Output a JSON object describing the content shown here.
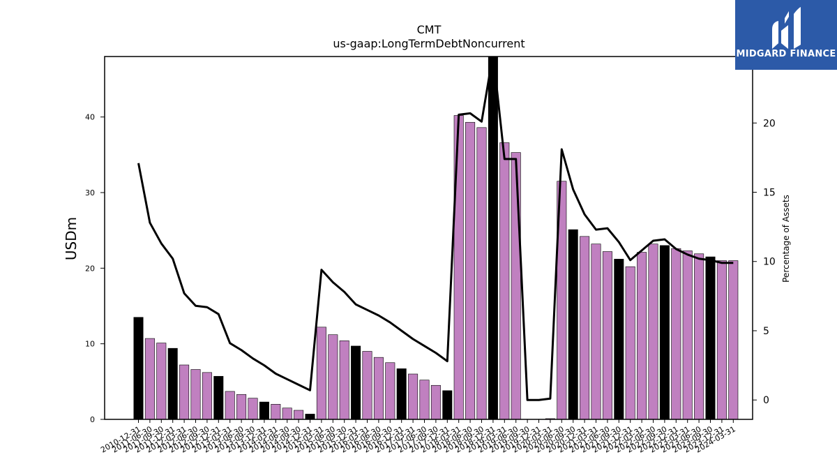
{
  "chart_data": {
    "type": "bar",
    "title": "CMT",
    "subtitle": "us-gaap:LongTermDebtNoncurrent",
    "ylabel": "USDm",
    "ylabel_right": "Percentage of Assets",
    "ylim": [
      0,
      48
    ],
    "ylim_right": [
      -1.4,
      24.8
    ],
    "yticks": [
      0,
      10,
      20,
      30,
      40
    ],
    "yticks_right": [
      0,
      5,
      10,
      15,
      20
    ],
    "categories": [
      "2010-12-31",
      "2011-06-30",
      "2011-09-30",
      "2011-12-31",
      "2012-03-31",
      "2012-06-30",
      "2012-09-30",
      "2012-12-31",
      "2013-03-31",
      "2013-06-30",
      "2013-09-30",
      "2013-12-31",
      "2014-03-31",
      "2014-06-30",
      "2014-09-30",
      "2014-12-31",
      "2015-03-31",
      "2015-06-30",
      "2015-09-30",
      "2015-12-31",
      "2016-03-31",
      "2016-06-30",
      "2016-09-30",
      "2016-12-31",
      "2017-03-31",
      "2017-06-30",
      "2017-09-30",
      "2017-12-31",
      "2018-03-31",
      "2018-06-30",
      "2018-09-30",
      "2018-12-31",
      "2019-03-31",
      "2019-06-30",
      "2019-09-30",
      "2019-12-31",
      "2020-03-31",
      "2020-06-30",
      "2020-09-30",
      "2020-12-31",
      "2021-03-31",
      "2021-06-30",
      "2021-09-30",
      "2021-12-31",
      "2022-03-31",
      "2022-06-30",
      "2022-09-30",
      "2022-12-31",
      "2023-03-31",
      "2023-06-30",
      "2023-09-30",
      "2023-12-31",
      "2024-03-31"
    ],
    "values": [
      13.5,
      10.7,
      10.1,
      9.4,
      7.2,
      6.6,
      6.2,
      5.7,
      3.7,
      3.3,
      2.8,
      2.3,
      2.0,
      1.5,
      1.2,
      0.7,
      12.2,
      11.2,
      10.4,
      9.7,
      9.0,
      8.2,
      7.5,
      6.7,
      6.0,
      5.2,
      4.5,
      3.8,
      40.2,
      39.3,
      38.6,
      48.6,
      36.6,
      35.3,
      0.0,
      0.0,
      0.1,
      31.5,
      25.1,
      24.2,
      23.2,
      22.2,
      21.2,
      20.2,
      22.1,
      23.2,
      23.0,
      22.6,
      22.3,
      21.9,
      21.5,
      21.0,
      21.0
    ],
    "highlight": [
      true,
      false,
      false,
      true,
      false,
      false,
      false,
      true,
      false,
      false,
      false,
      true,
      false,
      false,
      false,
      true,
      false,
      false,
      false,
      true,
      false,
      false,
      false,
      true,
      false,
      false,
      false,
      true,
      false,
      false,
      false,
      true,
      false,
      false,
      false,
      true,
      false,
      false,
      true,
      false,
      false,
      false,
      true,
      false,
      false,
      false,
      true,
      false,
      false,
      false,
      true,
      false,
      false
    ],
    "line_series": {
      "name": "Percentage of Assets",
      "values": [
        17.1,
        12.8,
        11.3,
        10.2,
        7.7,
        6.8,
        6.7,
        6.2,
        4.1,
        3.6,
        3.0,
        2.5,
        1.9,
        1.5,
        1.1,
        0.7,
        9.4,
        8.5,
        7.8,
        6.9,
        6.5,
        6.1,
        5.6,
        5.0,
        4.4,
        3.9,
        3.4,
        2.8,
        20.6,
        20.7,
        20.1,
        25.0,
        17.4,
        17.4,
        0.0,
        0.0,
        0.1,
        18.1,
        15.2,
        13.4,
        12.3,
        12.4,
        11.4,
        10.1,
        10.8,
        11.5,
        11.6,
        10.9,
        10.5,
        10.2,
        10.1,
        9.9,
        9.9
      ]
    },
    "colors": {
      "bar": "#c080c0",
      "highlight_bar": "#000000",
      "line": "#000000"
    }
  },
  "logo": {
    "text": "MIDGARD FINANCE",
    "bg": "#2c5aa8"
  }
}
